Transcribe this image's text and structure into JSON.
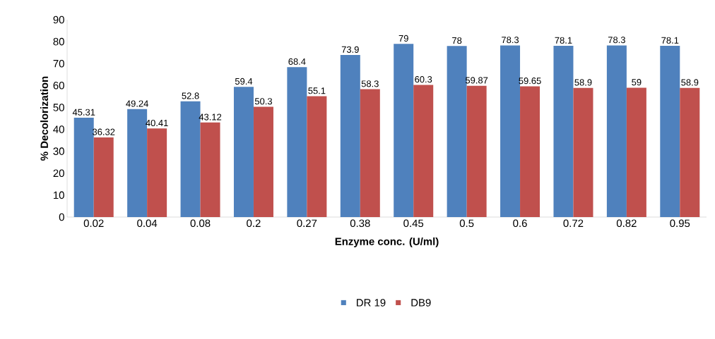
{
  "chart_data": {
    "type": "bar",
    "xlabel": "Enzyme conc. (U/ml)",
    "ylabel": "% Decolorization",
    "categories": [
      "0.02",
      "0.04",
      "0.08",
      "0.2",
      "0.27",
      "0.38",
      "0.45",
      "0.5",
      "0.6",
      "0.72",
      "0.82",
      "0.95"
    ],
    "series": [
      {
        "name": "DR 19",
        "color": "#4f81bd",
        "values": [
          45.31,
          49.24,
          52.8,
          59.4,
          68.4,
          73.9,
          79,
          78,
          78.3,
          78.1,
          78.3,
          78.1
        ]
      },
      {
        "name": "DB9",
        "color": "#c0504d",
        "values": [
          36.32,
          40.41,
          43.12,
          50.3,
          55.1,
          58.3,
          60.3,
          59.87,
          59.65,
          58.9,
          59,
          58.9
        ]
      }
    ],
    "ylim": [
      0,
      90
    ],
    "yticks": [
      0,
      10,
      20,
      30,
      40,
      50,
      60,
      70,
      80,
      90
    ],
    "data_labels": true,
    "legend": "bottom",
    "grid": false
  }
}
